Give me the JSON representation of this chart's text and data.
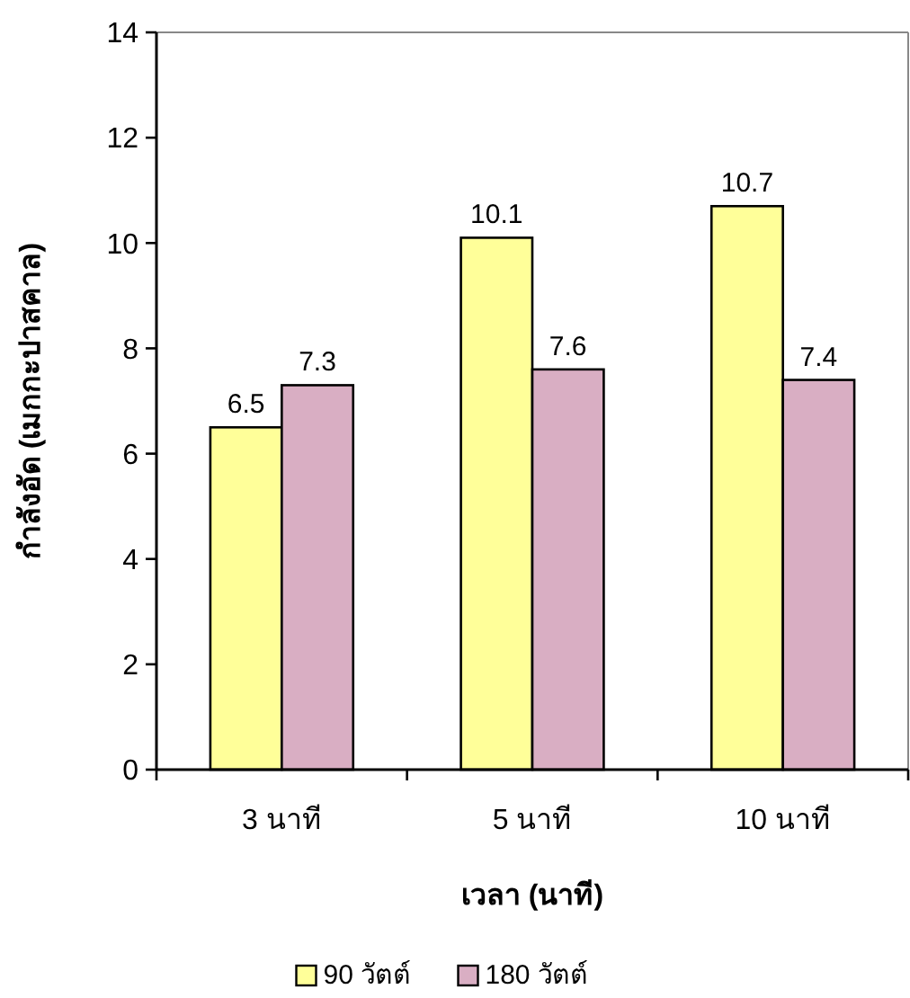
{
  "chart_data": {
    "type": "bar",
    "xlabel": "เวลา (นาที)",
    "ylabel": "กำลังอัด (เมกกะปาสคาล)",
    "categories": [
      "3 นาที",
      "5 นาที",
      "10 นาที"
    ],
    "series": [
      {
        "name": "90 วัตต์",
        "color": "#ffff99",
        "values": [
          6.5,
          10.1,
          10.7
        ]
      },
      {
        "name": "180 วัตต์",
        "color": "#d9aec3",
        "values": [
          7.3,
          7.6,
          7.4
        ]
      }
    ],
    "ylim": [
      0,
      14
    ],
    "yticks": [
      0,
      2,
      4,
      6,
      8,
      10,
      12,
      14
    ],
    "grid": false,
    "legend": "bottom",
    "data_labels": true
  }
}
